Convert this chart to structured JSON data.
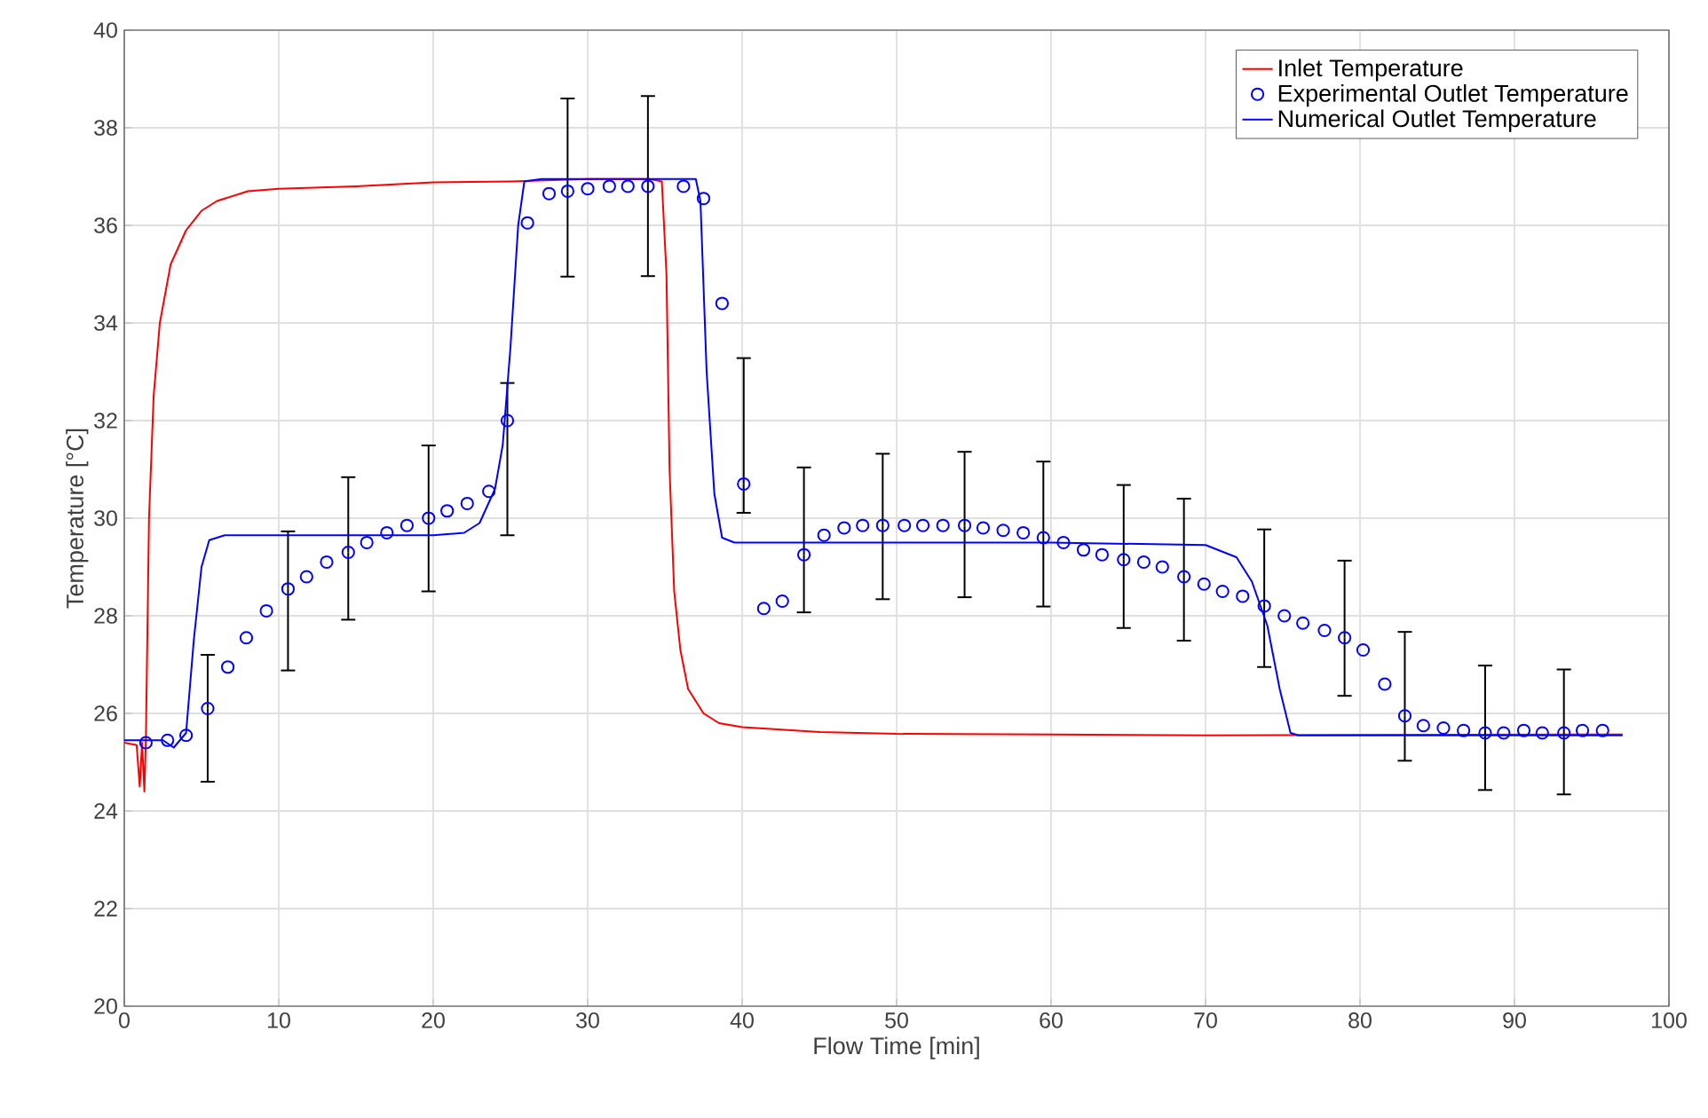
{
  "chart_data": {
    "type": "line",
    "xlabel": "Flow Time [min]",
    "ylabel": "Temperature [°C]",
    "xlim": [
      0,
      100
    ],
    "xticks": [
      0,
      10,
      20,
      30,
      40,
      50,
      60,
      70,
      80,
      90,
      100
    ],
    "ylim": [
      20,
      40
    ],
    "yticks": [
      20,
      22,
      24,
      26,
      28,
      30,
      32,
      34,
      36,
      38,
      40
    ],
    "grid": true,
    "legend": "top right",
    "series": [
      {
        "name": "Inlet Temperature",
        "type": "line",
        "color": "#ff0000",
        "marker": "none",
        "line_style": "solid",
        "x": [
          0,
          0.8,
          1.0,
          1.15,
          1.3,
          1.4,
          1.6,
          1.9,
          2.3,
          3,
          4,
          5,
          6,
          8,
          10,
          15,
          20,
          25,
          30,
          34,
          34.8,
          35.1,
          35.3,
          35.6,
          36,
          36.5,
          37.5,
          38.5,
          40,
          45,
          50,
          60,
          70,
          80,
          97
        ],
        "values": [
          25.4,
          25.35,
          24.5,
          25.4,
          24.4,
          25.5,
          30,
          32.5,
          34,
          35.2,
          35.9,
          36.3,
          36.5,
          36.7,
          36.75,
          36.8,
          36.88,
          36.9,
          36.95,
          36.95,
          36.9,
          35,
          31,
          28.5,
          27.3,
          26.5,
          26,
          25.8,
          25.72,
          25.62,
          25.58,
          25.57,
          25.55,
          25.56,
          25.57
        ]
      },
      {
        "name": "Experimental Outlet Temperature",
        "type": "scatter",
        "color": "#0000ff",
        "marker": "circle",
        "x": [
          1.4,
          2.8,
          4.0,
          5.4,
          6.7,
          7.9,
          9.2,
          10.6,
          11.8,
          13.1,
          14.5,
          15.7,
          17.0,
          18.3,
          19.7,
          20.9,
          22.2,
          23.6,
          24.8,
          26.1,
          27.5,
          28.7,
          30.0,
          31.4,
          32.6,
          33.9,
          36.2,
          37.5,
          38.7,
          40.1,
          41.4,
          42.6,
          44.0,
          45.3,
          46.6,
          47.8,
          49.1,
          50.5,
          51.7,
          53.0,
          54.4,
          55.6,
          56.9,
          58.2,
          59.5,
          60.8,
          62.1,
          63.3,
          64.7,
          66.0,
          67.2,
          68.6,
          69.9,
          71.1,
          72.4,
          73.8,
          75.1,
          76.3,
          77.7,
          79.0,
          80.2,
          81.6,
          82.9,
          84.1,
          85.4,
          86.7,
          88.1,
          89.3,
          90.6,
          91.8,
          93.2,
          94.4,
          95.7
        ],
        "values": [
          25.4,
          25.45,
          25.55,
          26.1,
          26.95,
          27.55,
          28.1,
          28.55,
          28.8,
          29.1,
          29.3,
          29.5,
          29.7,
          29.85,
          30.0,
          30.15,
          30.3,
          30.55,
          32.0,
          36.05,
          36.65,
          36.7,
          36.75,
          36.8,
          36.8,
          36.8,
          36.8,
          36.55,
          34.4,
          30.7,
          28.15,
          28.3,
          29.25,
          29.65,
          29.8,
          29.85,
          29.85,
          29.85,
          29.85,
          29.85,
          29.85,
          29.8,
          29.75,
          29.7,
          29.6,
          29.5,
          29.35,
          29.25,
          29.15,
          29.1,
          29.0,
          28.8,
          28.65,
          28.5,
          28.4,
          28.2,
          28.0,
          27.85,
          27.7,
          27.55,
          27.3,
          26.6,
          25.95,
          25.75,
          25.7,
          25.65,
          25.6,
          25.6,
          25.65,
          25.6,
          25.6,
          25.65,
          25.65
        ],
        "errors": [
          null,
          null,
          null,
          [
            24.6,
            27.2
          ],
          null,
          null,
          null,
          [
            26.88,
            29.73
          ],
          null,
          null,
          [
            27.92,
            30.84
          ],
          null,
          null,
          null,
          [
            28.5,
            31.49
          ],
          null,
          null,
          null,
          [
            29.65,
            32.77
          ],
          null,
          null,
          [
            34.95,
            38.6
          ],
          null,
          null,
          null,
          [
            34.96,
            38.65
          ],
          null,
          null,
          null,
          [
            30.11,
            33.28
          ],
          null,
          null,
          [
            28.07,
            31.04
          ],
          null,
          null,
          null,
          [
            28.34,
            31.32
          ],
          null,
          null,
          null,
          [
            28.38,
            31.36
          ],
          null,
          null,
          null,
          [
            28.19,
            31.16
          ],
          null,
          null,
          null,
          [
            27.75,
            30.68
          ],
          null,
          null,
          [
            27.49,
            30.4
          ],
          null,
          null,
          null,
          [
            26.95,
            29.77
          ],
          null,
          null,
          null,
          [
            26.36,
            29.13
          ],
          null,
          null,
          [
            25.03,
            27.67
          ],
          null,
          null,
          null,
          [
            24.43,
            26.98
          ],
          null,
          null,
          null,
          [
            24.34,
            26.9
          ],
          null,
          null
        ]
      },
      {
        "name": "Numerical Outlet Temperature",
        "type": "line",
        "color": "#0000ff",
        "marker": "none",
        "line_style": "solid",
        "x": [
          0,
          2.5,
          3.2,
          4,
          4.5,
          5,
          5.5,
          6.5,
          20,
          22,
          23,
          24,
          24.5,
          25,
          25.5,
          25.9,
          27,
          37,
          37.3,
          37.7,
          38.2,
          38.7,
          39.5,
          60,
          70,
          72,
          73,
          74,
          74.8,
          75.5,
          76,
          97
        ],
        "values": [
          25.45,
          25.45,
          25.3,
          25.6,
          27.5,
          29,
          29.55,
          29.65,
          29.65,
          29.7,
          29.9,
          30.6,
          31.5,
          33.5,
          36,
          36.9,
          36.95,
          36.95,
          36.5,
          33,
          30.5,
          29.6,
          29.5,
          29.5,
          29.45,
          29.2,
          28.7,
          27.8,
          26.5,
          25.6,
          25.55,
          25.55
        ]
      }
    ]
  }
}
